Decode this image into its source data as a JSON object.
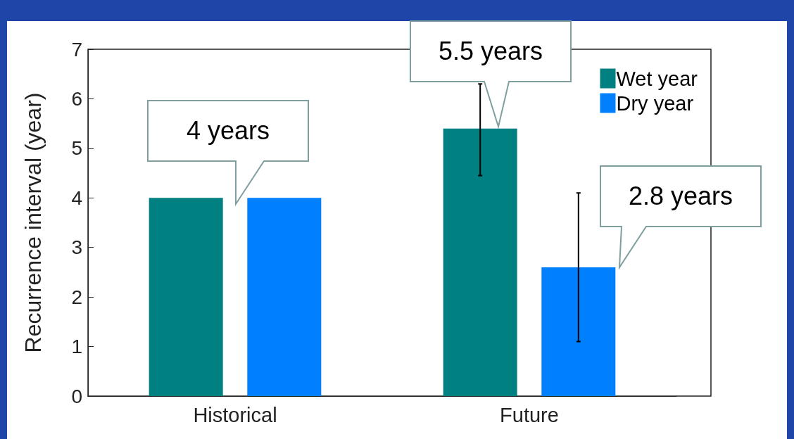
{
  "chart_data": {
    "type": "bar",
    "ylabel": "Recurrence interval (year)",
    "categories": [
      "Historical",
      "Future"
    ],
    "series": [
      {
        "name": "Wet year",
        "color": "#008080",
        "values": [
          4,
          5.4
        ],
        "errors": [
          null,
          [
            4.45,
            6.3
          ]
        ]
      },
      {
        "name": "Dry year",
        "color": "#0080ff",
        "values": [
          4,
          2.6
        ],
        "errors": [
          null,
          [
            1.1,
            4.1
          ]
        ]
      }
    ],
    "ylim": [
      0,
      7
    ],
    "yticks": [
      0,
      1,
      2,
      3,
      4,
      5,
      6,
      7
    ],
    "grid": false,
    "legend": "top right",
    "annotations": [
      "4 years",
      "5.5 years",
      "2.8 years"
    ]
  }
}
